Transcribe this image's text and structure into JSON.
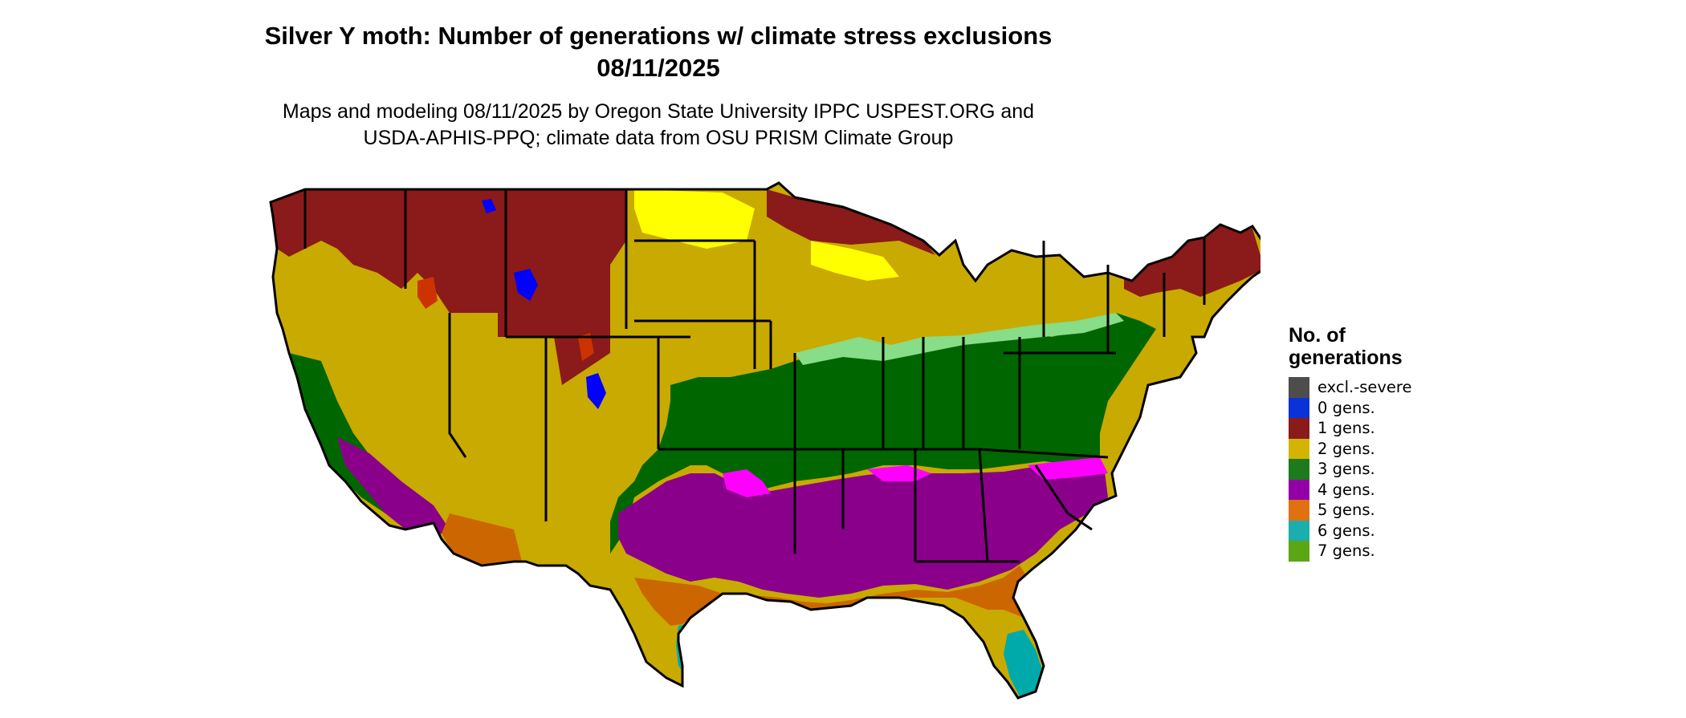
{
  "header": {
    "title_line1": "Silver Y moth: Number of generations w/ climate stress exclusions",
    "title_line2": "08/11/2025",
    "subtitle_line1": "Maps and modeling 08/11/2025 by Oregon State University IPPC USPEST.ORG and",
    "subtitle_line2": "USDA-APHIS-PPQ; climate data from OSU PRISM Climate Group"
  },
  "legend": {
    "title_line1": "No. of",
    "title_line2": "generations",
    "items": [
      {
        "label": "excl.-severe",
        "color": "#4d4d4d"
      },
      {
        "label": "0 gens.",
        "color": "#0a32d8"
      },
      {
        "label": "1 gens.",
        "color": "#8b1a1a"
      },
      {
        "label": "2 gens.",
        "color": "#d4b400"
      },
      {
        "label": "3 gens.",
        "color": "#1d7a1d"
      },
      {
        "label": "4 gens.",
        "color": "#9400a8"
      },
      {
        "label": "5 gens.",
        "color": "#e07010"
      },
      {
        "label": "6 gens.",
        "color": "#1aaeae"
      },
      {
        "label": "7 gens.",
        "color": "#5aa614"
      }
    ]
  },
  "map": {
    "colors": {
      "gen1": "#8b1a1a",
      "gen1_bright": "#cc3300",
      "gen2": "#c9aa00",
      "gen2_bright": "#ffff00",
      "gen3": "#006600",
      "gen3_light": "#88dd88",
      "gen4": "#8b008b",
      "gen4_bright": "#ff00ff",
      "gen5": "#cc6600",
      "gen6": "#00aaaa",
      "gen0": "#0000ff",
      "border": "#000000"
    }
  }
}
